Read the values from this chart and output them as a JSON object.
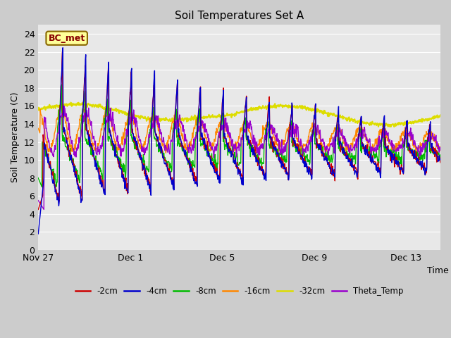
{
  "title": "Soil Temperatures Set A",
  "xlabel": "Time",
  "ylabel": "Soil Temperature (C)",
  "ylim": [
    0,
    25
  ],
  "yticks": [
    0,
    2,
    4,
    6,
    8,
    10,
    12,
    14,
    16,
    18,
    20,
    22,
    24
  ],
  "xtick_labels": [
    "Nov 27",
    "Dec 1",
    "Dec 5",
    "Dec 9",
    "Dec 13"
  ],
  "xtick_positions": [
    0.0,
    4.0,
    8.0,
    12.0,
    16.0
  ],
  "xlim": [
    0,
    17.5
  ],
  "colors": {
    "-2cm": "#cc0000",
    "-4cm": "#0000cc",
    "-8cm": "#00bb00",
    "-16cm": "#ff8800",
    "-32cm": "#dddd00",
    "Theta_Temp": "#9900cc"
  },
  "annotation_text": "BC_met",
  "annotation_fg": "#880000",
  "annotation_bg": "#ffff99",
  "annotation_edge": "#886600",
  "fig_bg": "#cccccc",
  "plot_bg": "#e8e8e8",
  "grid_color": "#ffffff"
}
